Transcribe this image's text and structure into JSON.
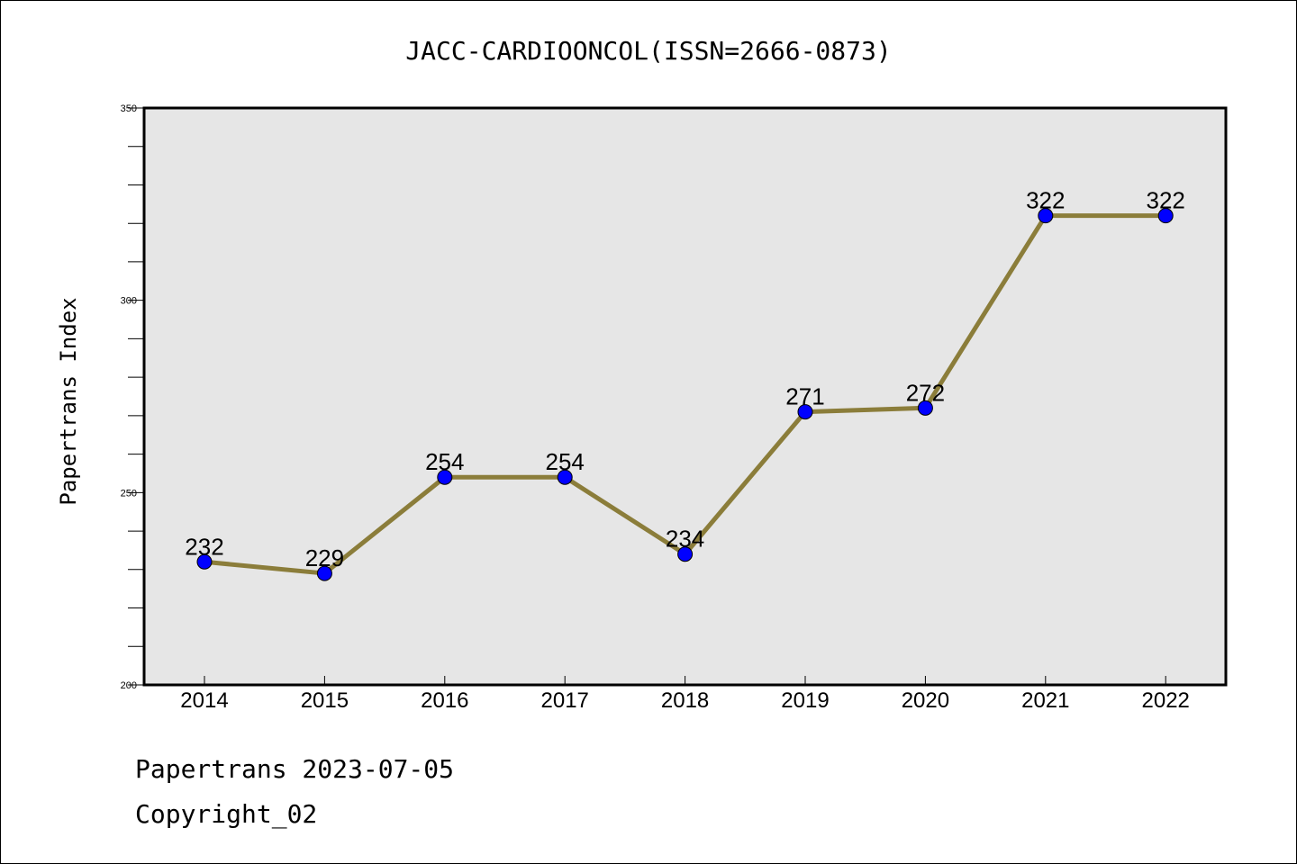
{
  "chart_data": {
    "type": "line",
    "title": "JACC-CARDIOONCOL(ISSN=2666-0873)",
    "ylabel": "Papertrans Index",
    "xlabel": "",
    "categories": [
      "2014",
      "2015",
      "2016",
      "2017",
      "2018",
      "2019",
      "2020",
      "2021",
      "2022"
    ],
    "values": [
      232,
      229,
      254,
      254,
      234,
      271,
      272,
      322,
      322
    ],
    "data_labels": [
      "232",
      "229",
      "254",
      "254",
      "234",
      "271",
      "272",
      "322",
      "322"
    ],
    "ylim": [
      200,
      350
    ],
    "yticks": [
      200,
      250,
      300,
      350
    ],
    "ytick_labels": [
      "200",
      "250",
      "300",
      "350"
    ],
    "grid": false,
    "line_color": "#8b7d3a",
    "marker_color": "#0000ff",
    "plot_background": "#e6e6e6"
  },
  "footer": {
    "line1": "Papertrans 2023-07-05",
    "line2": "Copyright_02"
  }
}
